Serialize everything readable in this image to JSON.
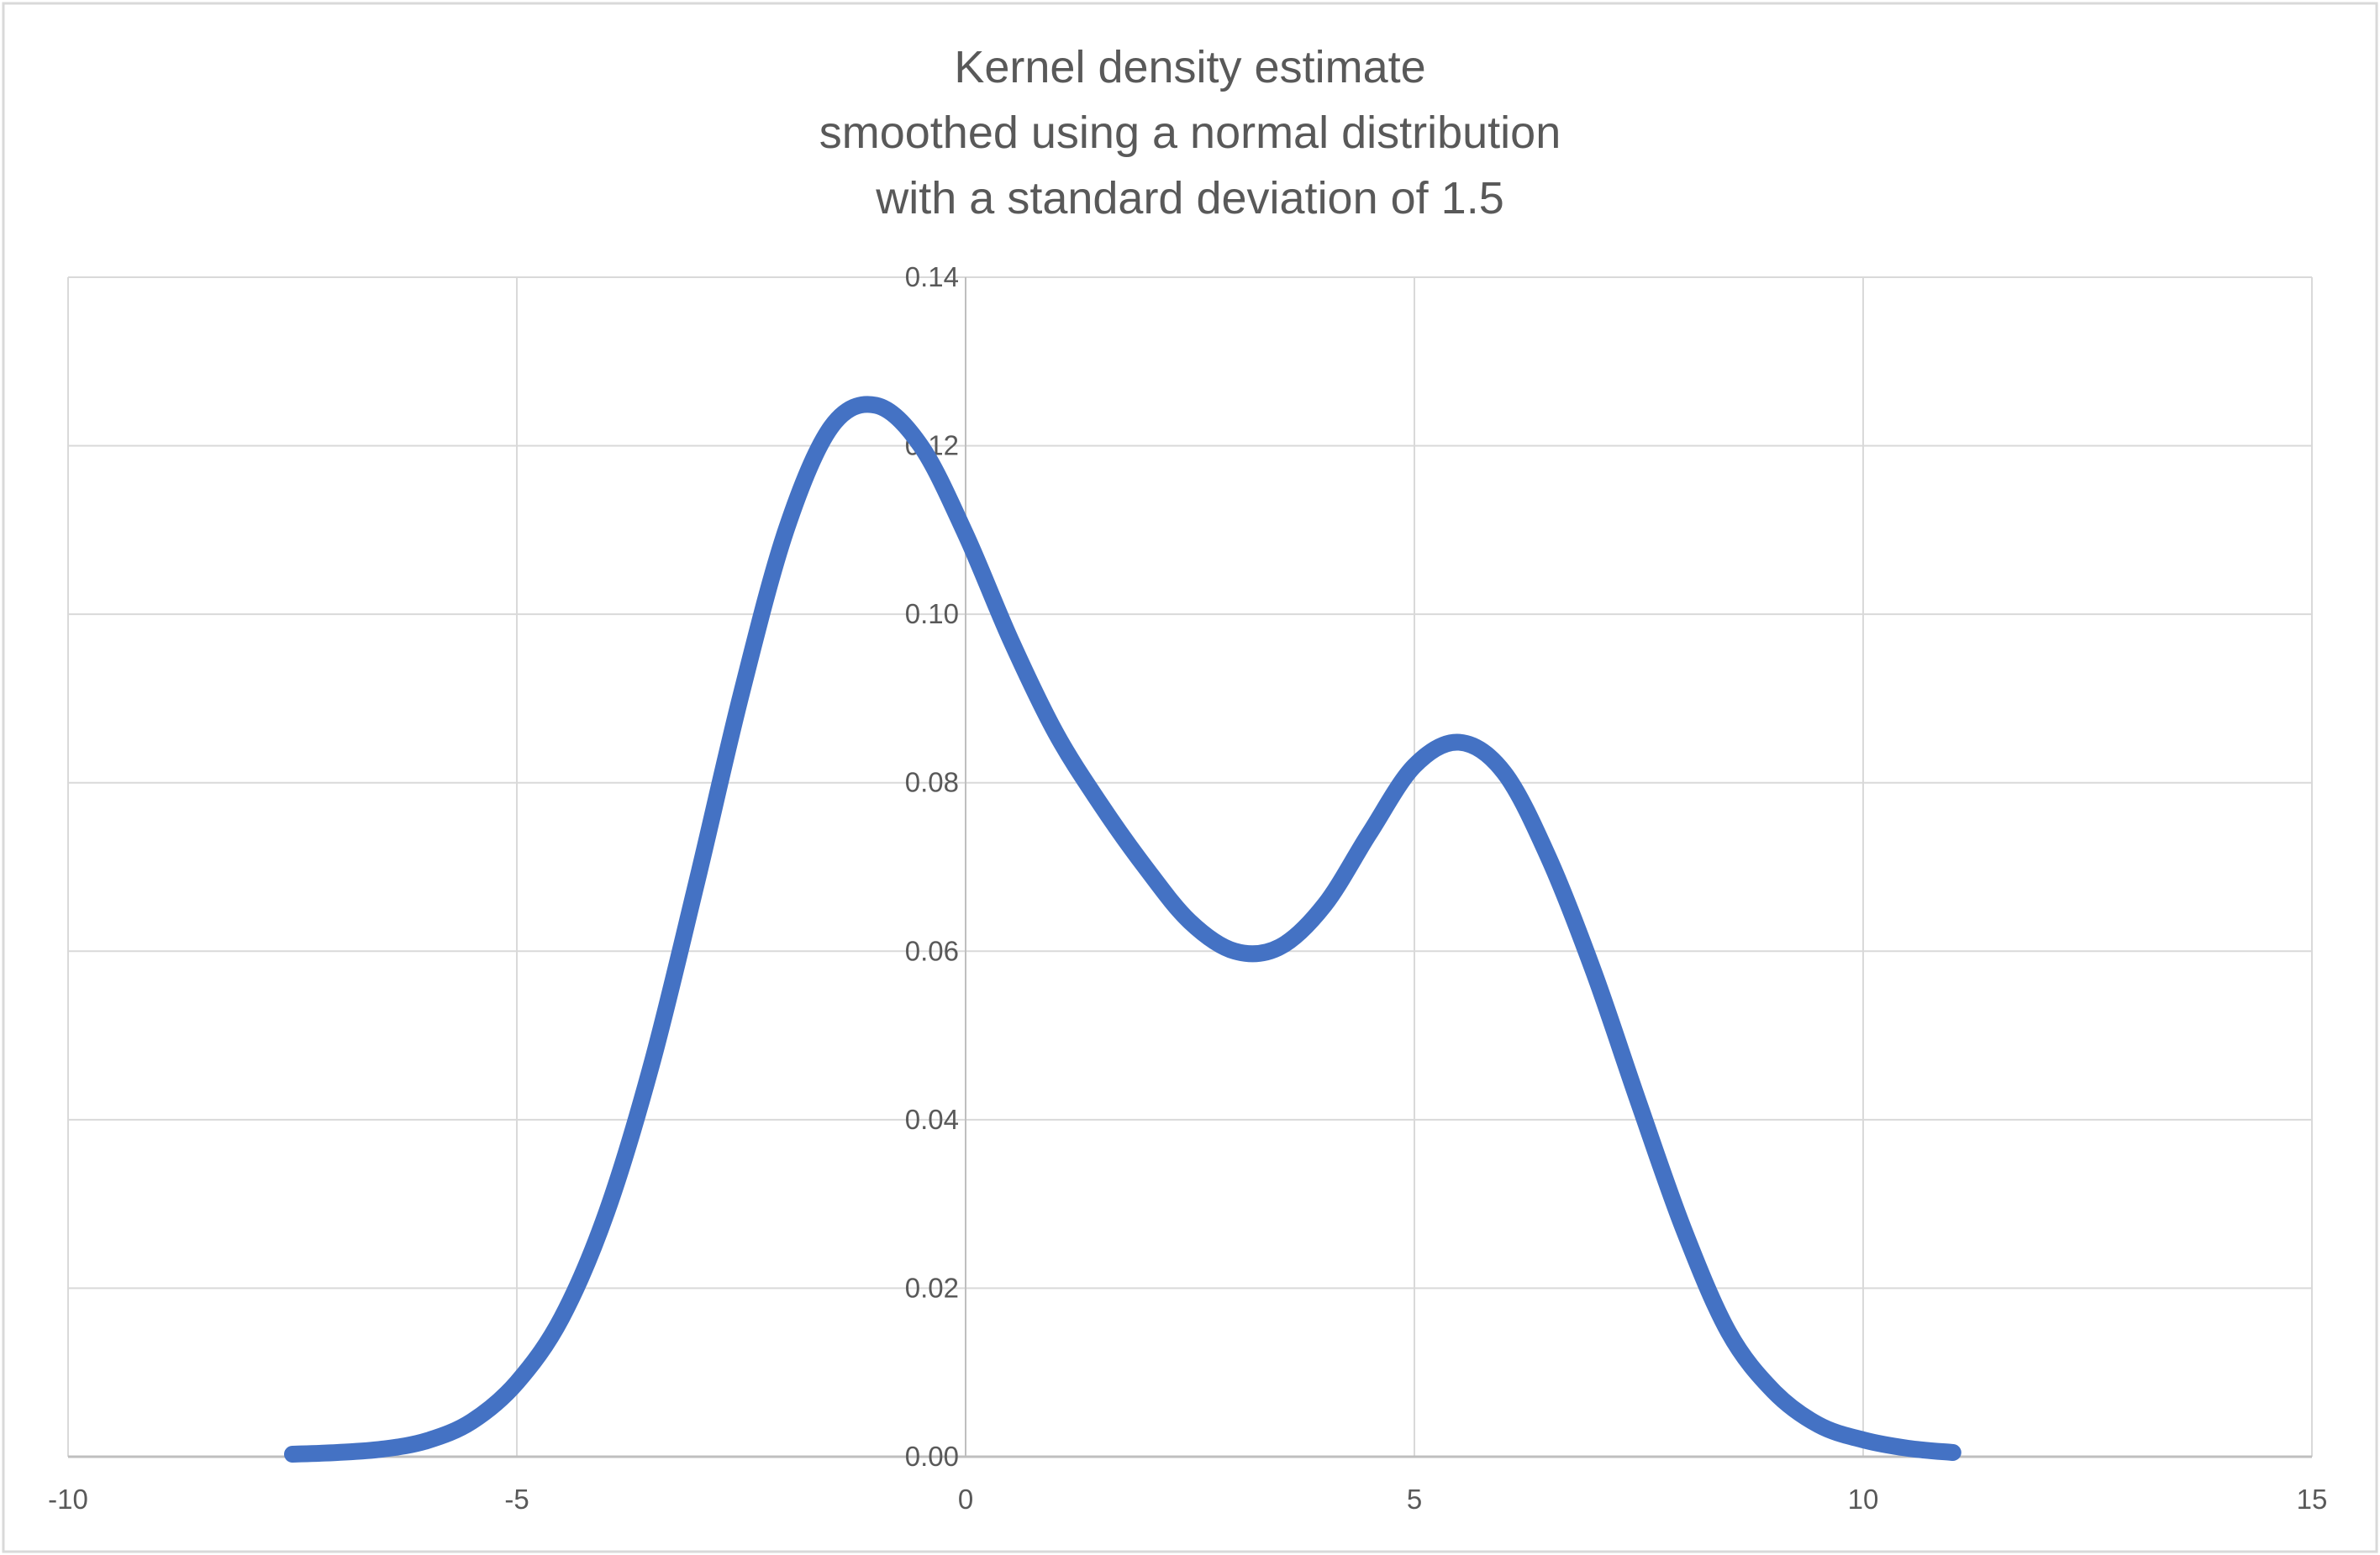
{
  "chart_data": {
    "type": "line",
    "title": [
      "Kernel density estimate",
      "smoothed using a normal distribution",
      "with a standard deviation of 1.5"
    ],
    "xlabel": "",
    "ylabel": "",
    "xlim": [
      -10,
      15
    ],
    "ylim": [
      0,
      0.14
    ],
    "x_ticks": [
      -10,
      -5,
      0,
      5,
      10,
      15
    ],
    "x_tick_labels": [
      "-10",
      "-5",
      "0",
      "5",
      "10",
      "15"
    ],
    "y_ticks": [
      0,
      0.02,
      0.04,
      0.06,
      0.08,
      0.1,
      0.12,
      0.14
    ],
    "y_tick_labels": [
      "0.00",
      "0.02",
      "0.04",
      "0.06",
      "0.08",
      "0.10",
      "0.12",
      "0.14"
    ],
    "grid": true,
    "legend": "none",
    "colors": {
      "line": "#4472C4",
      "grid": "#D9D9D9",
      "text": "#595959"
    },
    "series": [
      {
        "x": [
          -7.5,
          -7,
          -6.5,
          -6,
          -5.5,
          -5,
          -4.5,
          -4,
          -3.5,
          -3,
          -2.5,
          -2,
          -1.5,
          -1,
          -0.5,
          0,
          0.5,
          1,
          1.5,
          2,
          2.5,
          3,
          3.5,
          4,
          4.5,
          5,
          5.5,
          6,
          6.5,
          7,
          7.5,
          8,
          8.5,
          9,
          9.5,
          10,
          10.5,
          11
        ],
        "y": [
          0.0003,
          0.0005,
          0.0009,
          0.0019,
          0.0042,
          0.0088,
          0.0165,
          0.029,
          0.0465,
          0.068,
          0.0905,
          0.11,
          0.1222,
          0.1248,
          0.12,
          0.1095,
          0.097,
          0.086,
          0.0775,
          0.07,
          0.0635,
          0.06,
          0.0605,
          0.0655,
          0.074,
          0.082,
          0.0848,
          0.0812,
          0.071,
          0.0575,
          0.042,
          0.027,
          0.0148,
          0.0078,
          0.0038,
          0.002,
          0.001,
          0.0005
        ]
      }
    ]
  }
}
